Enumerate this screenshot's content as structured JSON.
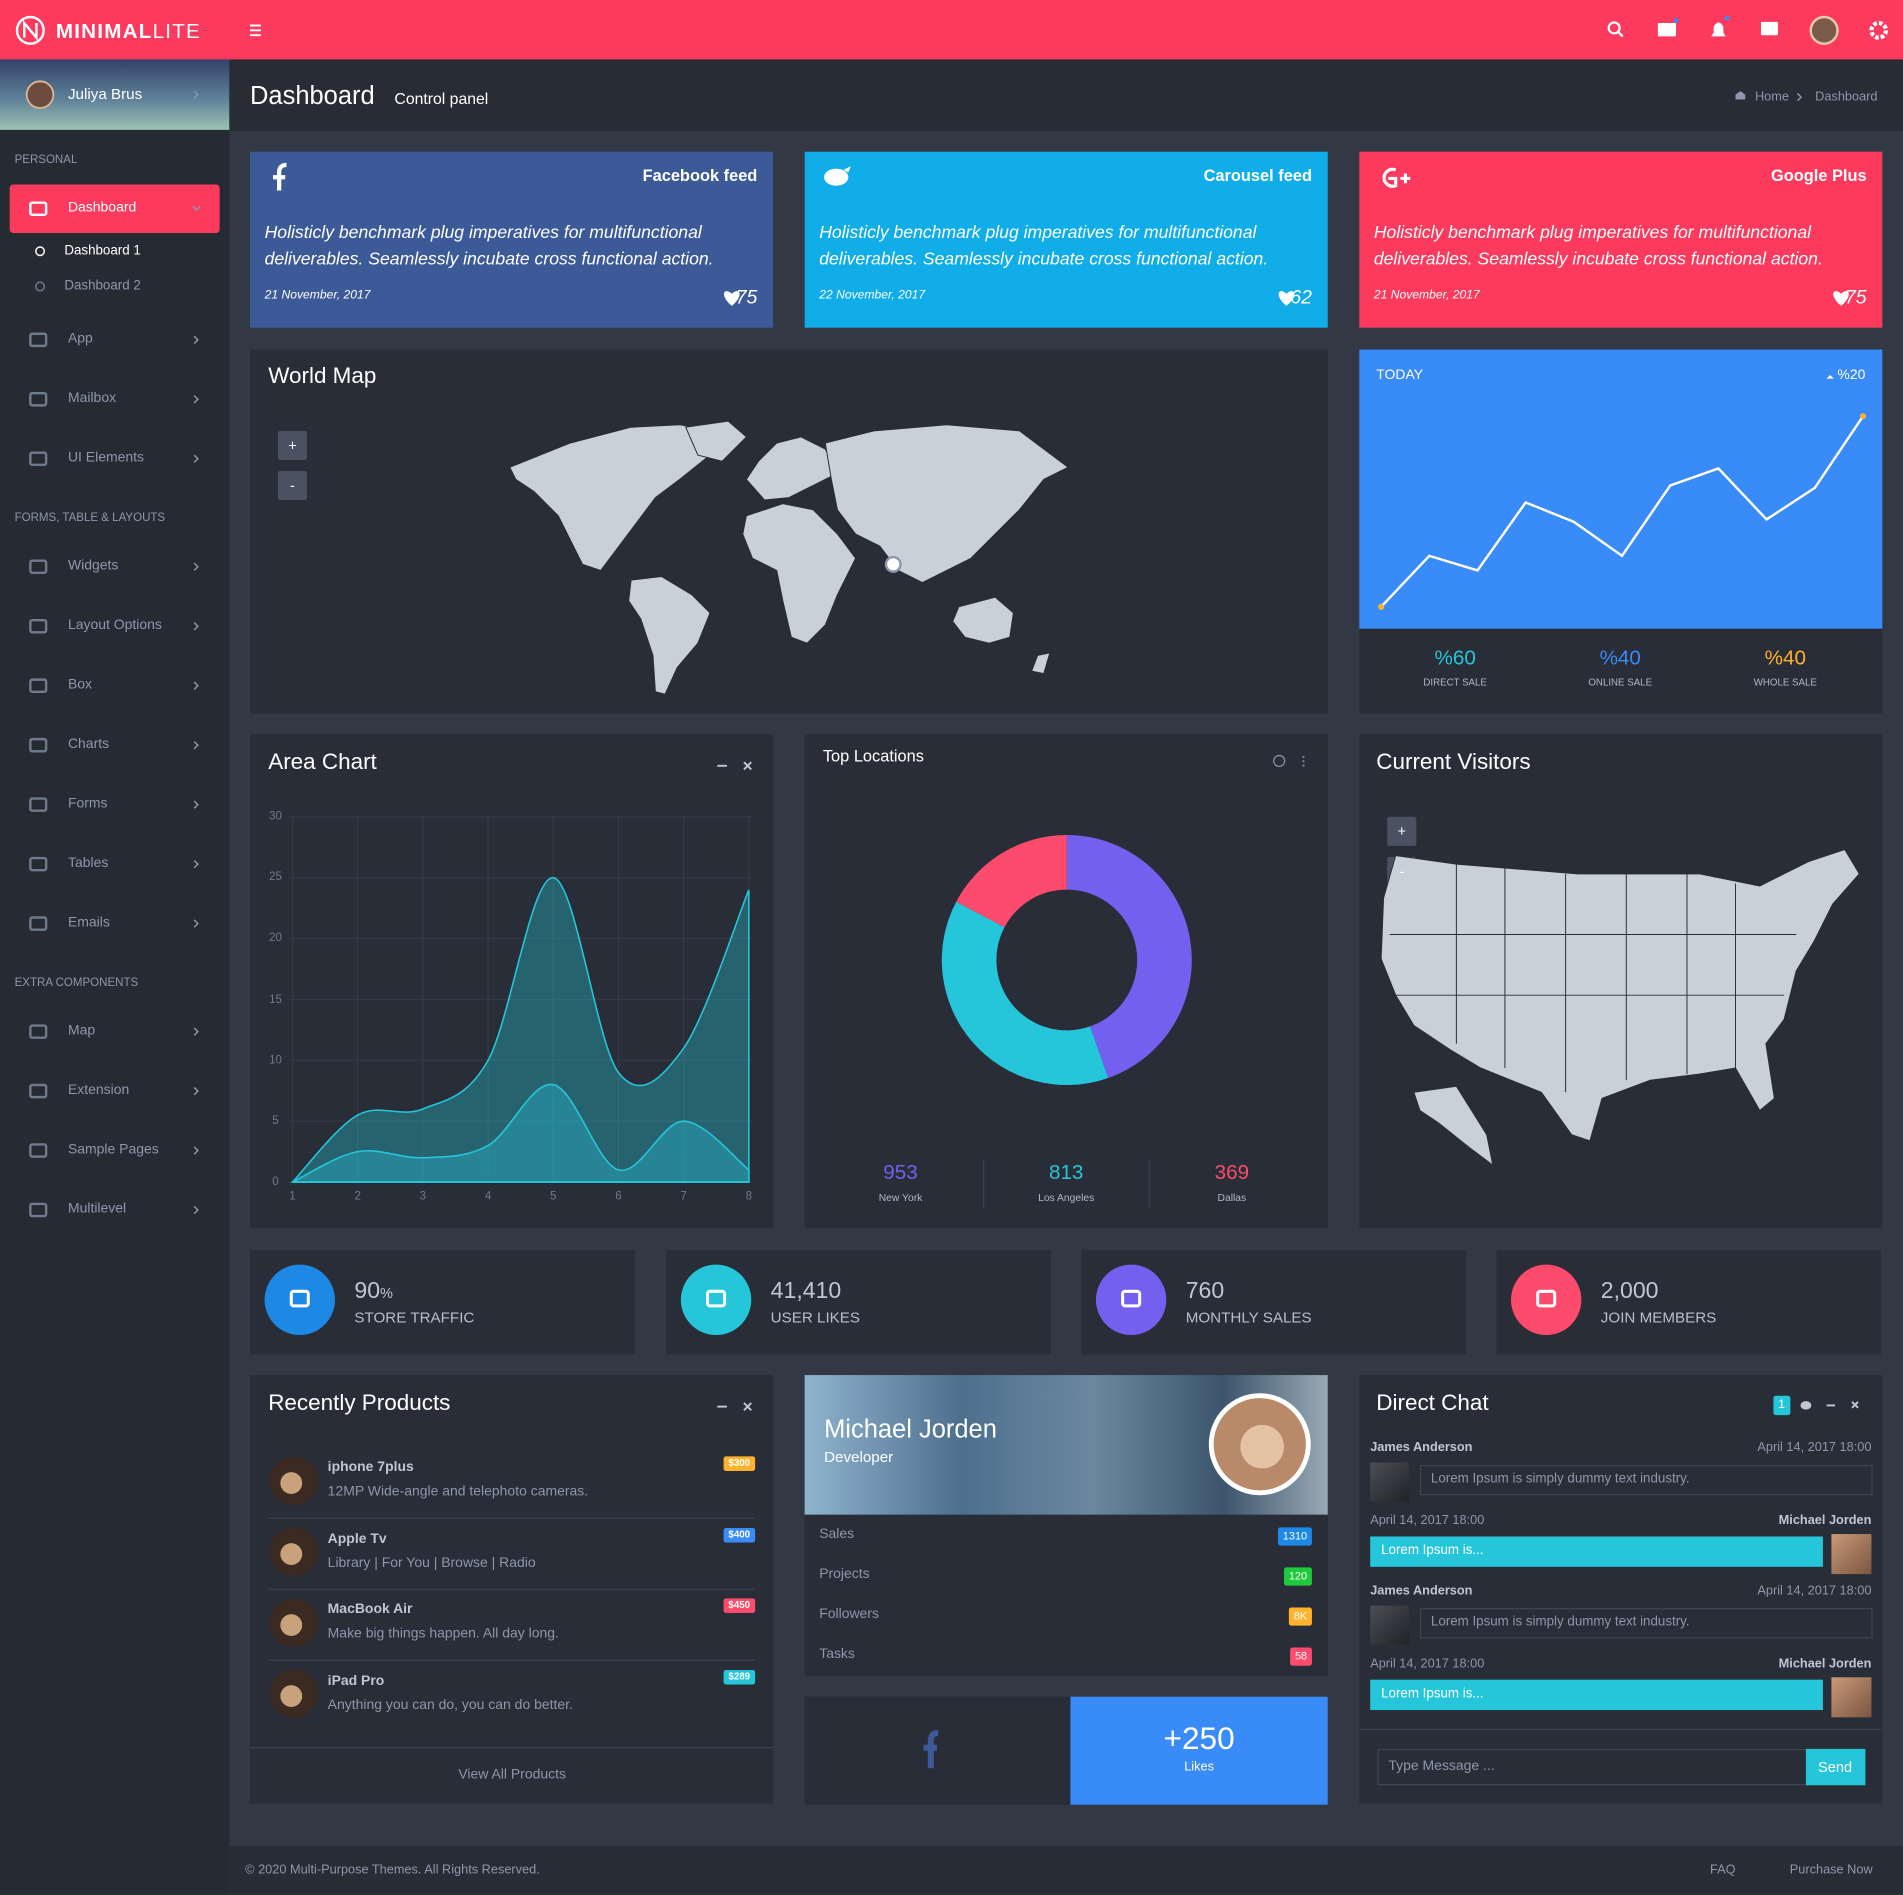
{
  "header": {
    "brand": "MINIMAL",
    "brand_suffix": "LITE"
  },
  "sidebar": {
    "user": "Juliya Brus",
    "groups": [
      {
        "title": "PERSONAL",
        "items": [
          {
            "label": "Dashboard",
            "active": true,
            "children": [
              "Dashboard 1",
              "Dashboard 2"
            ]
          },
          {
            "label": "App"
          },
          {
            "label": "Mailbox"
          },
          {
            "label": "UI Elements"
          }
        ]
      },
      {
        "title": "FORMS, TABLE & LAYOUTS",
        "items": [
          {
            "label": "Widgets"
          },
          {
            "label": "Layout Options"
          },
          {
            "label": "Box"
          },
          {
            "label": "Charts"
          },
          {
            "label": "Forms"
          },
          {
            "label": "Tables"
          },
          {
            "label": "Emails"
          }
        ]
      },
      {
        "title": "EXTRA COMPONENTS",
        "items": [
          {
            "label": "Map"
          },
          {
            "label": "Extension"
          },
          {
            "label": "Sample Pages"
          },
          {
            "label": "Multilevel"
          }
        ]
      }
    ]
  },
  "content_header": {
    "title": "Dashboard",
    "subtitle": "Control panel",
    "breadcrumb": [
      "Home",
      "Dashboard"
    ]
  },
  "social_cards": [
    {
      "title": "Facebook feed",
      "text": "Holisticly benchmark plug imperatives for multifunctional deliverables. Seamlessly incubate cross functional action.",
      "date": "21 November, 2017",
      "likes": 75,
      "color": "#3d5a98"
    },
    {
      "title": "Carousel feed",
      "text": "Holisticly benchmark plug imperatives for multifunctional deliverables. Seamlessly incubate cross functional action.",
      "date": "22 November, 2017",
      "likes": 62,
      "color": "#10ade9"
    },
    {
      "title": "Google Plus",
      "text": "Holisticly benchmark plug imperatives for multifunctional deliverables. Seamlessly incubate cross functional action.",
      "date": "21 November, 2017",
      "likes": 75,
      "color": "#fb3a5e"
    }
  ],
  "world_map": {
    "title": "World Map",
    "zoom": [
      "+",
      "-"
    ]
  },
  "visitors_map": {
    "title": "Current Visitors",
    "zoom": [
      "+",
      "-"
    ]
  },
  "chart_data": [
    {
      "type": "line",
      "title": "TODAY",
      "trend": "%20",
      "values": [
        20,
        62,
        50,
        106,
        90,
        62,
        120,
        134,
        92,
        118,
        177
      ],
      "color": "#ffffff",
      "stats": [
        {
          "value": "%60",
          "label": "DIRECT SALE",
          "color": "#26c6da"
        },
        {
          "value": "%40",
          "label": "ONLINE SALE",
          "color": "#398bf7"
        },
        {
          "value": "%40",
          "label": "WHOLE SALE",
          "color": "#ffb22b"
        }
      ]
    },
    {
      "type": "area",
      "title": "Area Chart",
      "x": [
        1,
        2,
        3,
        4,
        5,
        6,
        7,
        8
      ],
      "xlim": [
        1,
        8
      ],
      "ylim": [
        0,
        30
      ],
      "xticks": [
        1,
        2,
        3,
        4,
        5,
        6,
        7,
        8
      ],
      "yticks": [
        0,
        5,
        10,
        15,
        20,
        25,
        30
      ],
      "grid": true,
      "series": [
        {
          "color": "#26c6da",
          "values": [
            0,
            5.5,
            6,
            10,
            25,
            9,
            11,
            24
          ]
        },
        {
          "color": "#26c6da",
          "values": [
            0,
            2.5,
            2,
            3,
            8,
            1,
            5,
            1
          ]
        }
      ]
    },
    {
      "type": "donut",
      "title": "Top Locations",
      "categories": [
        "New York",
        "Los Angeles",
        "Dallas"
      ],
      "values": [
        953,
        813,
        369
      ],
      "colors": [
        "#7460ee",
        "#26c6da",
        "#fc4b6c"
      ]
    }
  ],
  "stat_boxes": [
    {
      "value": "90",
      "unit": "%",
      "label": "STORE TRAFFIC",
      "color": "#1e88e5"
    },
    {
      "value": "41,410",
      "label": "USER LIKES",
      "color": "#26c6da"
    },
    {
      "value": "760",
      "label": "MONTHLY SALES",
      "color": "#7460ee"
    },
    {
      "value": "2,000",
      "label": "JOIN MEMBERS",
      "color": "#fc4b6c"
    }
  ],
  "products": {
    "title": "Recently Products",
    "items": [
      {
        "name": "iphone 7plus",
        "desc": "12MP Wide-angle and telephoto cameras.",
        "price": "$300",
        "color": "#ffb22b"
      },
      {
        "name": "Apple Tv",
        "desc": "Library | For You | Browse | Radio",
        "price": "$400",
        "color": "#398bf7"
      },
      {
        "name": "MacBook Air",
        "desc": "Make big things happen. All day long.",
        "price": "$450",
        "color": "#fc4b6c"
      },
      {
        "name": "iPad Pro",
        "desc": "Anything you can do, you can do better.",
        "price": "$289",
        "color": "#26c6da"
      }
    ],
    "footer": "View All Products"
  },
  "profile": {
    "name": "Michael Jorden",
    "role": "Developer",
    "stats": [
      {
        "label": "Sales",
        "value": "1310",
        "color": "#1e88e5"
      },
      {
        "label": "Projects",
        "value": "120",
        "color": "#1ec93c"
      },
      {
        "label": "Followers",
        "value": "8K",
        "color": "#ffb22b"
      },
      {
        "label": "Tasks",
        "value": "58",
        "color": "#fc4b6c"
      }
    ]
  },
  "likes": {
    "value": "+250",
    "label": "Likes"
  },
  "chat": {
    "title": "Direct Chat",
    "badge": "1",
    "messages": [
      {
        "name": "James Anderson",
        "time": "April 14, 2017 18:00",
        "text": "Lorem Ipsum is simply dummy text industry.",
        "side": "left"
      },
      {
        "name": "Michael Jorden",
        "time": "April 14, 2017 18:00",
        "text": "Lorem Ipsum is...",
        "side": "right"
      },
      {
        "name": "James Anderson",
        "time": "April 14, 2017 18:00",
        "text": "Lorem Ipsum is simply dummy text industry.",
        "side": "left"
      },
      {
        "name": "Michael Jorden",
        "time": "April 14, 2017 18:00",
        "text": "Lorem Ipsum is...",
        "side": "right"
      }
    ],
    "placeholder": "Type Message ...",
    "send": "Send"
  },
  "footer": {
    "copyright": "© 2020 Multi-Purpose Themes. All Rights Reserved.",
    "links": [
      "FAQ",
      "Purchase Now"
    ]
  }
}
